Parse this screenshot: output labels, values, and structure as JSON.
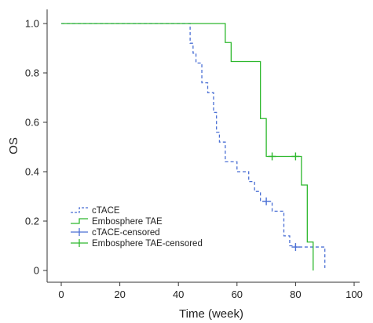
{
  "chart_data": {
    "type": "line",
    "title": "",
    "xlabel": "Time (week)",
    "ylabel": "OS",
    "xlim": [
      0,
      100
    ],
    "ylim": [
      0,
      1.0
    ],
    "xticks": [
      "0",
      "20",
      "40",
      "60",
      "80",
      "100"
    ],
    "yticks": [
      "0",
      "0.2",
      "0.4",
      "0.6",
      "0.8",
      "1.0"
    ],
    "grid": false,
    "legend_position": "bottom-left",
    "series": [
      {
        "name": "cTACE",
        "style": "dashed-step",
        "color": "#4a6fd4",
        "x": [
          0,
          44,
          45,
          46,
          48,
          50,
          52,
          53,
          54,
          56,
          60,
          64,
          66,
          68,
          70,
          72,
          76,
          78,
          80,
          90
        ],
        "y": [
          1.0,
          0.92,
          0.88,
          0.84,
          0.76,
          0.72,
          0.64,
          0.56,
          0.52,
          0.44,
          0.4,
          0.36,
          0.32,
          0.28,
          0.28,
          0.24,
          0.14,
          0.1,
          0.095,
          0.01
        ]
      },
      {
        "name": "Embosphere TAE",
        "style": "solid-step",
        "color": "#2db82d",
        "x": [
          0,
          56,
          58,
          68,
          70,
          82,
          84,
          86
        ],
        "y": [
          1.0,
          0.923,
          0.846,
          0.615,
          0.462,
          0.346,
          0.115,
          0.0
        ]
      },
      {
        "name": "cTACE-censored",
        "style": "marker",
        "color": "#4a6fd4",
        "x": [
          70,
          80
        ],
        "y": [
          0.28,
          0.095
        ]
      },
      {
        "name": "Embosphere TAE-censored",
        "style": "marker",
        "color": "#2db82d",
        "x": [
          72,
          80
        ],
        "y": [
          0.462,
          0.462
        ]
      }
    ]
  }
}
